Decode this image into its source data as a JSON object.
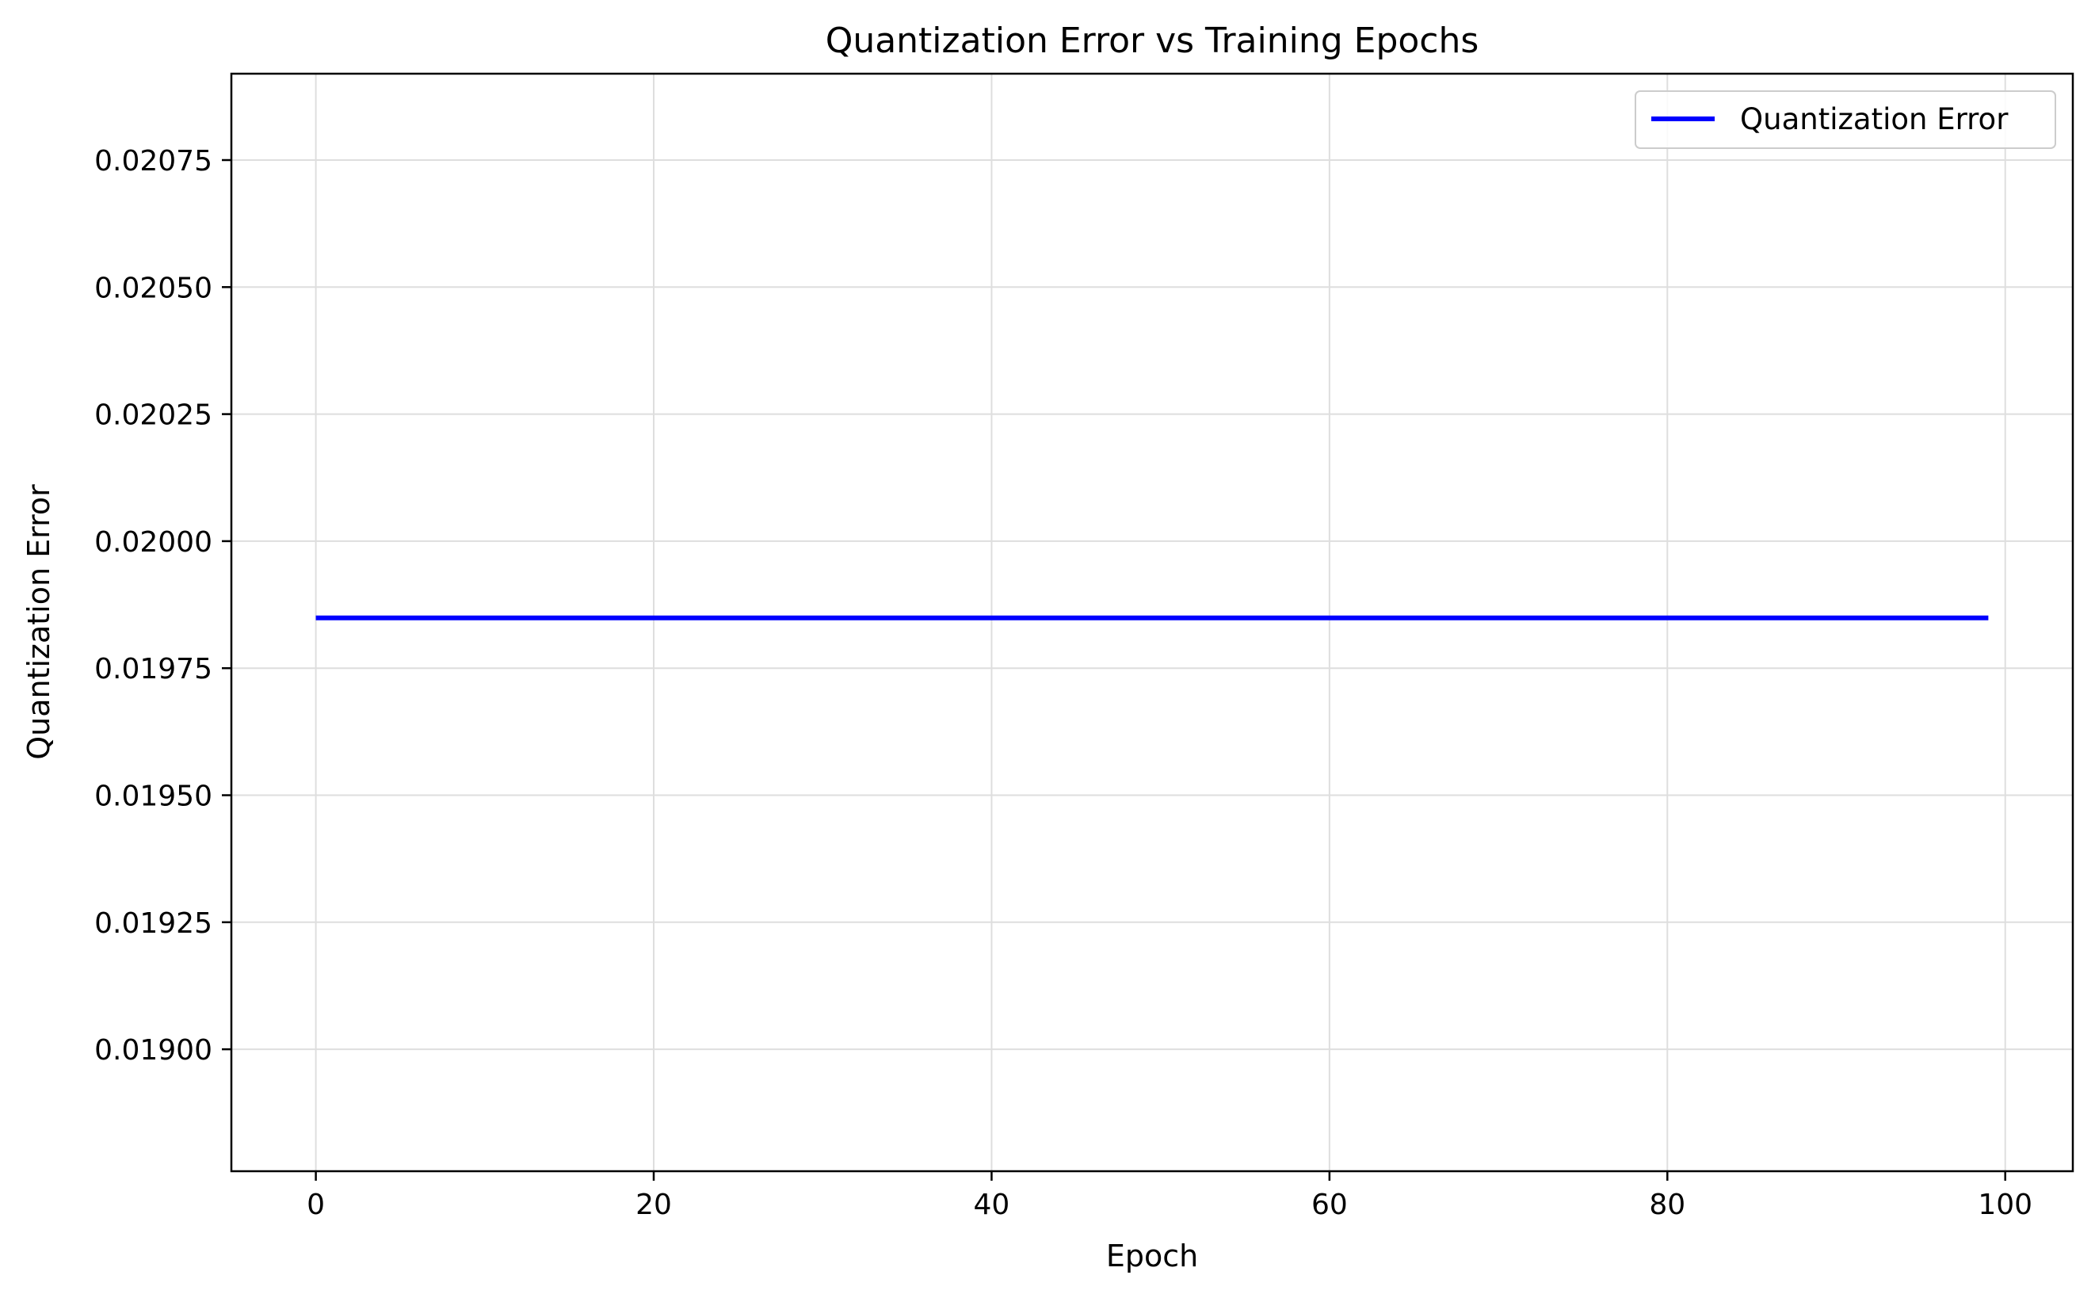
{
  "chart_data": {
    "type": "line",
    "title": "Quantization Error vs Training Epochs",
    "xlabel": "Epoch",
    "ylabel": "Quantization Error",
    "xlim": [
      -5,
      104
    ],
    "ylim": [
      0.01876,
      0.02092
    ],
    "xticks": [
      0,
      20,
      40,
      60,
      80,
      100
    ],
    "xtick_labels": [
      "0",
      "20",
      "40",
      "60",
      "80",
      "100"
    ],
    "yticks": [
      0.019,
      0.01925,
      0.0195,
      0.01975,
      0.02,
      0.02025,
      0.0205,
      0.02075
    ],
    "ytick_labels": [
      "0.01900",
      "0.01925",
      "0.01950",
      "0.01975",
      "0.02000",
      "0.02025",
      "0.02050",
      "0.02075"
    ],
    "grid": true,
    "legend_position": "top-right",
    "series": [
      {
        "name": "Quantization Error",
        "color": "#0000ff",
        "x": [
          0,
          99
        ],
        "y": [
          0.019849,
          0.019849
        ]
      }
    ]
  }
}
